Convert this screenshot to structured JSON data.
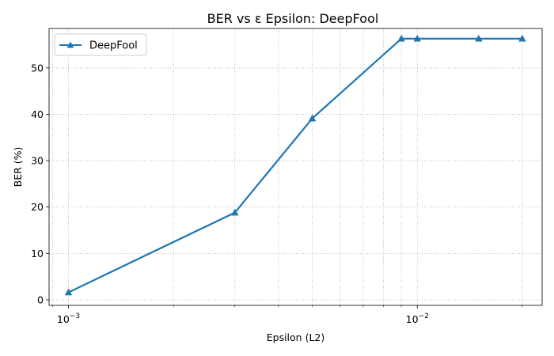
{
  "chart_data": {
    "type": "line",
    "title": "BER vs ε Epsilon: DeepFool",
    "xlabel": "Epsilon (L2)",
    "ylabel": "BER (%)",
    "xscale": "log",
    "xlim": [
      0.00088,
      0.0228
    ],
    "ylim": [
      -1.2,
      58.5
    ],
    "x_ticks": [
      {
        "value": 0.001,
        "base": "10",
        "exp": "−3"
      },
      {
        "value": 0.01,
        "base": "10",
        "exp": "−2"
      }
    ],
    "y_ticks": [
      0,
      10,
      20,
      30,
      40,
      50
    ],
    "grid": true,
    "legend_position": "top-left",
    "series": [
      {
        "name": "DeepFool",
        "color": "#1f77b4",
        "marker": "triangle-up",
        "x": [
          0.001,
          0.003,
          0.005,
          0.009,
          0.01,
          0.015,
          0.02
        ],
        "y": [
          1.6,
          18.8,
          39.1,
          56.3,
          56.3,
          56.3,
          56.3
        ]
      }
    ]
  }
}
